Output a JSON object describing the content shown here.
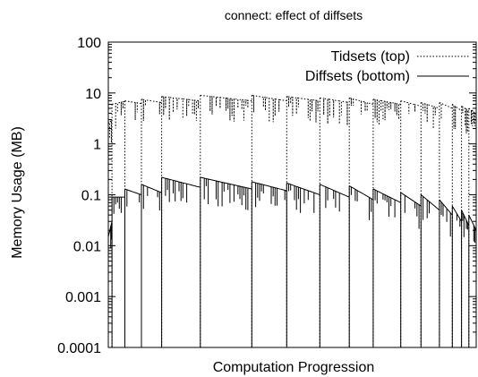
{
  "chart_data": {
    "type": "line",
    "title": "connect: effect of diffsets",
    "xlabel": "Computation Progression",
    "ylabel": "Memory Usage (MB)",
    "yscale": "log",
    "ylim": [
      0.0001,
      100
    ],
    "xlim": [
      0,
      100
    ],
    "y_ticks": [
      {
        "value": 0.0001,
        "label": "0.0001"
      },
      {
        "value": 0.001,
        "label": "0.001"
      },
      {
        "value": 0.01,
        "label": "0.01"
      },
      {
        "value": 0.1,
        "label": "0.1"
      },
      {
        "value": 1,
        "label": "1"
      },
      {
        "value": 10,
        "label": "10"
      },
      {
        "value": 100,
        "label": "100"
      }
    ],
    "x_ticks_shown": false,
    "grid": false,
    "legend_position": "top-right",
    "series": [
      {
        "name": "Tidsets (top)",
        "style": "dotted",
        "color": "#000000",
        "drop_to": 0.0001,
        "segments": [
          {
            "x0": 0.0,
            "x1": 1.0,
            "y0": 2.5,
            "y1": 3.0
          },
          {
            "x0": 1.0,
            "x1": 4.5,
            "y0": 6.0,
            "y1": 6.8
          },
          {
            "x0": 4.5,
            "x1": 9.0,
            "y0": 7.0,
            "y1": 6.2
          },
          {
            "x0": 9.0,
            "x1": 14.5,
            "y0": 7.5,
            "y1": 6.5
          },
          {
            "x0": 14.5,
            "x1": 25.0,
            "y0": 8.5,
            "y1": 7.0
          },
          {
            "x0": 25.0,
            "x1": 39.0,
            "y0": 9.0,
            "y1": 7.0
          },
          {
            "x0": 39.0,
            "x1": 48.5,
            "y0": 9.0,
            "y1": 7.0
          },
          {
            "x0": 48.5,
            "x1": 57.5,
            "y0": 8.5,
            "y1": 7.0
          },
          {
            "x0": 57.5,
            "x1": 65.5,
            "y0": 8.0,
            "y1": 6.5
          },
          {
            "x0": 65.5,
            "x1": 72.0,
            "y0": 8.0,
            "y1": 6.0
          },
          {
            "x0": 72.0,
            "x1": 79.5,
            "y0": 7.5,
            "y1": 6.0
          },
          {
            "x0": 79.5,
            "x1": 85.0,
            "y0": 7.0,
            "y1": 5.5
          },
          {
            "x0": 85.0,
            "x1": 90.0,
            "y0": 6.5,
            "y1": 5.0
          },
          {
            "x0": 90.0,
            "x1": 93.5,
            "y0": 6.5,
            "y1": 5.0
          },
          {
            "x0": 93.5,
            "x1": 96.0,
            "y0": 6.0,
            "y1": 4.5
          },
          {
            "x0": 96.0,
            "x1": 98.0,
            "y0": 5.5,
            "y1": 4.5
          },
          {
            "x0": 98.0,
            "x1": 100.0,
            "y0": 5.0,
            "y1": 4.0
          }
        ]
      },
      {
        "name": "Diffsets (bottom)",
        "style": "solid",
        "color": "#000000",
        "drop_to": 0.0001,
        "segments": [
          {
            "x0": 0.0,
            "x1": 1.0,
            "y0": 0.015,
            "y1": 0.03
          },
          {
            "x0": 1.0,
            "x1": 4.5,
            "y0": 0.09,
            "y1": 0.09
          },
          {
            "x0": 4.5,
            "x1": 9.0,
            "y0": 0.13,
            "y1": 0.1
          },
          {
            "x0": 9.0,
            "x1": 14.5,
            "y0": 0.16,
            "y1": 0.11
          },
          {
            "x0": 14.5,
            "x1": 25.0,
            "y0": 0.22,
            "y1": 0.14
          },
          {
            "x0": 25.0,
            "x1": 39.0,
            "y0": 0.22,
            "y1": 0.13
          },
          {
            "x0": 39.0,
            "x1": 48.5,
            "y0": 0.18,
            "y1": 0.12
          },
          {
            "x0": 48.5,
            "x1": 57.5,
            "y0": 0.17,
            "y1": 0.1
          },
          {
            "x0": 57.5,
            "x1": 65.5,
            "y0": 0.16,
            "y1": 0.09
          },
          {
            "x0": 65.5,
            "x1": 72.0,
            "y0": 0.15,
            "y1": 0.08
          },
          {
            "x0": 72.0,
            "x1": 79.5,
            "y0": 0.13,
            "y1": 0.07
          },
          {
            "x0": 79.5,
            "x1": 85.0,
            "y0": 0.11,
            "y1": 0.06
          },
          {
            "x0": 85.0,
            "x1": 90.0,
            "y0": 0.1,
            "y1": 0.05
          },
          {
            "x0": 90.0,
            "x1": 93.5,
            "y0": 0.08,
            "y1": 0.04
          },
          {
            "x0": 93.5,
            "x1": 96.0,
            "y0": 0.06,
            "y1": 0.03
          },
          {
            "x0": 96.0,
            "x1": 98.0,
            "y0": 0.05,
            "y1": 0.025
          },
          {
            "x0": 98.0,
            "x1": 100.0,
            "y0": 0.04,
            "y1": 0.02
          }
        ]
      }
    ]
  }
}
